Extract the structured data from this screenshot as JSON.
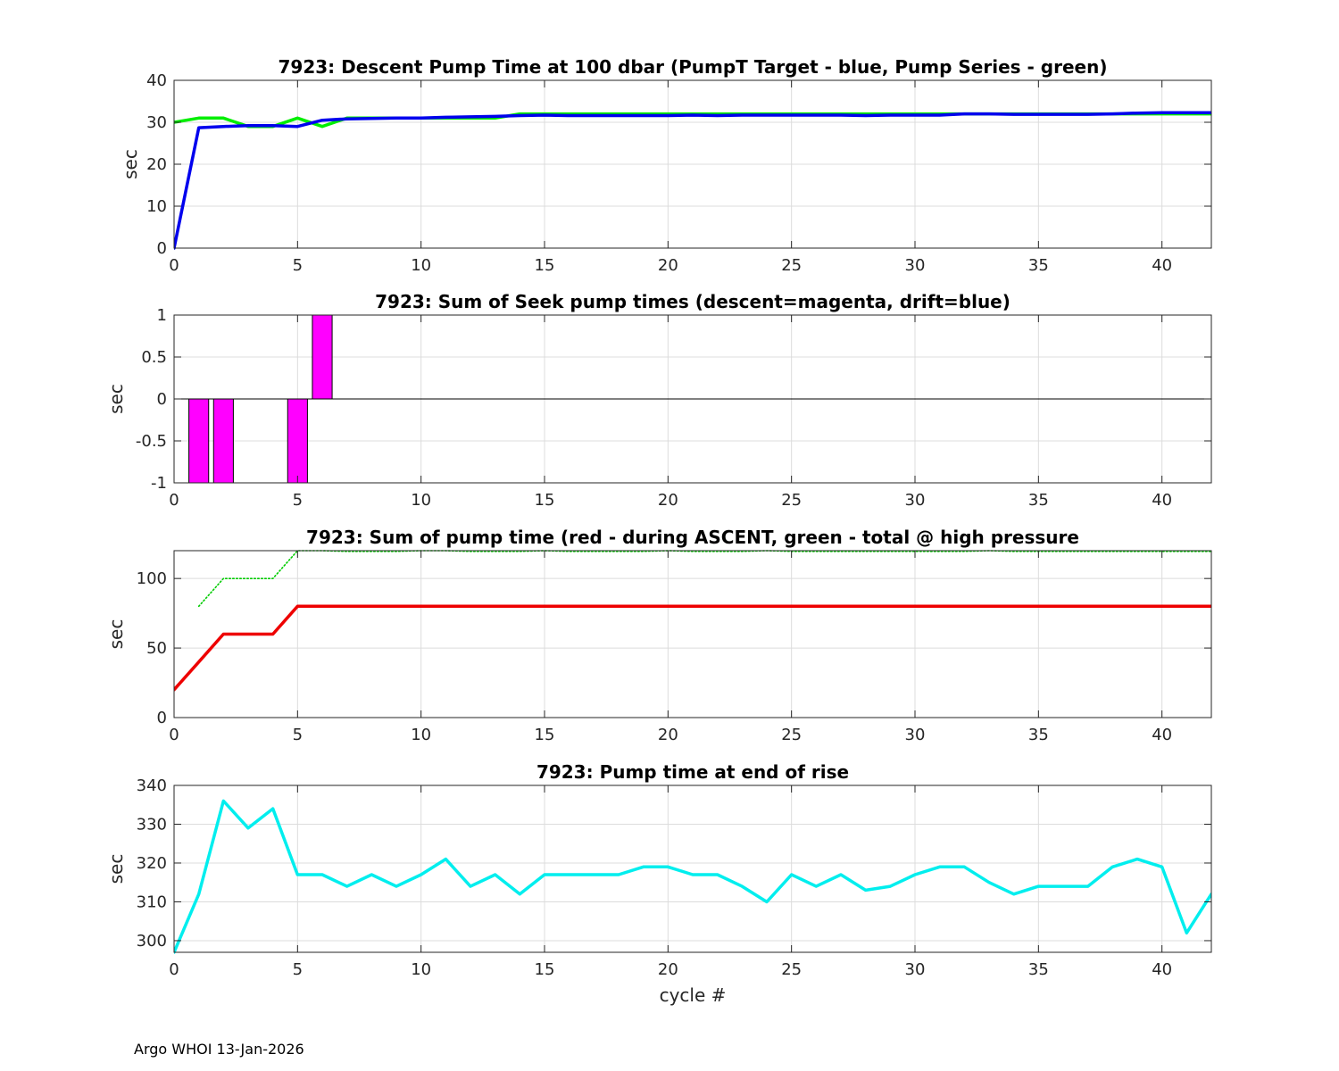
{
  "footer": "Argo WHOI 13-Jan-2026",
  "chart_data": [
    {
      "type": "line",
      "title": "7923: Descent Pump Time at 100 dbar (PumpT Target - blue, Pump Series - green)",
      "xlabel": "",
      "ylabel": "sec",
      "xlim": [
        0,
        42
      ],
      "ylim": [
        0,
        40
      ],
      "xticks": [
        0,
        5,
        10,
        15,
        20,
        25,
        30,
        35,
        40
      ],
      "yticks": [
        0,
        10,
        20,
        30,
        40
      ],
      "grid": true,
      "series": [
        {
          "color": "#00ee00",
          "style": "solid",
          "x": [
            0,
            1,
            2,
            3,
            4,
            5,
            6,
            7,
            8,
            9,
            10,
            11,
            12,
            13,
            14,
            15,
            16,
            17,
            18,
            19,
            20,
            21,
            22,
            23,
            24,
            25,
            26,
            27,
            28,
            29,
            30,
            31,
            32,
            33,
            34,
            35,
            36,
            37,
            38,
            39,
            40,
            41,
            42
          ],
          "y": [
            30,
            31,
            31,
            29,
            29,
            31,
            29,
            31,
            31,
            31,
            31,
            31,
            31,
            31,
            32,
            32,
            32,
            32,
            32,
            32,
            32,
            32,
            32,
            32,
            32,
            32,
            32,
            32,
            32,
            32,
            32,
            32,
            32,
            32,
            32,
            32,
            32,
            32,
            32,
            32,
            32,
            32,
            32
          ]
        },
        {
          "color": "#0000ee",
          "style": "solid",
          "x": [
            0,
            1,
            2,
            3,
            4,
            5,
            6,
            7,
            8,
            9,
            10,
            11,
            12,
            13,
            14,
            15,
            16,
            17,
            18,
            19,
            20,
            21,
            22,
            23,
            24,
            25,
            26,
            27,
            28,
            29,
            30,
            31,
            32,
            33,
            34,
            35,
            36,
            37,
            38,
            39,
            40,
            41,
            42
          ],
          "y": [
            0,
            28.7,
            29,
            29.2,
            29.2,
            29,
            30.5,
            30.8,
            30.9,
            31,
            31,
            31.2,
            31.3,
            31.4,
            31.6,
            31.7,
            31.6,
            31.6,
            31.6,
            31.6,
            31.6,
            31.7,
            31.6,
            31.7,
            31.7,
            31.7,
            31.7,
            31.7,
            31.6,
            31.7,
            31.7,
            31.7,
            32,
            32,
            31.9,
            31.9,
            31.9,
            31.9,
            32,
            32.2,
            32.3,
            32.3,
            32.3
          ]
        }
      ]
    },
    {
      "type": "bar",
      "title": "7923: Sum of Seek pump times (descent=magenta, drift=blue)",
      "xlabel": "",
      "ylabel": "sec",
      "xlim": [
        0,
        42
      ],
      "ylim": [
        -1,
        1
      ],
      "xticks": [
        0,
        5,
        10,
        15,
        20,
        25,
        30,
        35,
        40
      ],
      "yticks": [
        -1,
        -0.5,
        0,
        0.5,
        1
      ],
      "grid": true,
      "bar_width": 0.8,
      "zero_line": true,
      "series": [
        {
          "color": "#ff00ff",
          "x": [
            1,
            2,
            5,
            6
          ],
          "y": [
            -1,
            -1,
            -1,
            1
          ]
        }
      ]
    },
    {
      "type": "line",
      "title": "7923: Sum of pump time (red - during ASCENT, green - total @ high pressure",
      "xlabel": "",
      "ylabel": "sec",
      "xlim": [
        0,
        42
      ],
      "ylim": [
        0,
        120
      ],
      "xticks": [
        0,
        5,
        10,
        15,
        20,
        25,
        30,
        35,
        40
      ],
      "yticks": [
        0,
        50,
        100
      ],
      "grid": true,
      "series": [
        {
          "color": "#00cc00",
          "style": "dotted",
          "x": [
            1,
            2,
            3,
            4,
            5,
            6,
            7,
            8,
            9,
            10,
            11,
            12,
            13,
            14,
            15,
            16,
            17,
            18,
            19,
            20,
            21,
            22,
            23,
            24,
            25,
            26,
            27,
            28,
            29,
            30,
            31,
            32,
            33,
            34,
            35,
            36,
            37,
            38,
            39,
            40,
            41,
            42
          ],
          "y": [
            80,
            100,
            100,
            100,
            120,
            120,
            119.5,
            119.5,
            119.5,
            120,
            120,
            119.5,
            119.5,
            119.5,
            120,
            119.5,
            119.5,
            119.5,
            119.5,
            120,
            119.5,
            119.5,
            119.5,
            120,
            119.5,
            119.5,
            119.5,
            119.5,
            119.5,
            119.5,
            119.5,
            119.5,
            120,
            119.5,
            119.5,
            119.5,
            119.5,
            119.5,
            119.5,
            119.5,
            119.5,
            119.5
          ]
        },
        {
          "color": "#ee0000",
          "style": "solid",
          "x": [
            0,
            1,
            2,
            3,
            4,
            5,
            6,
            7,
            8,
            9,
            10,
            11,
            12,
            13,
            14,
            15,
            16,
            17,
            18,
            19,
            20,
            21,
            22,
            23,
            24,
            25,
            26,
            27,
            28,
            29,
            30,
            31,
            32,
            33,
            34,
            35,
            36,
            37,
            38,
            39,
            40,
            41,
            42
          ],
          "y": [
            20,
            40,
            60,
            60,
            60,
            80,
            80,
            80,
            80,
            80,
            80,
            80,
            80,
            80,
            80,
            80,
            80,
            80,
            80,
            80,
            80,
            80,
            80,
            80,
            80,
            80,
            80,
            80,
            80,
            80,
            80,
            80,
            80,
            80,
            80,
            80,
            80,
            80,
            80,
            80,
            80,
            80,
            80
          ]
        }
      ]
    },
    {
      "type": "line",
      "title": "7923: Pump time at end of rise",
      "xlabel": "cycle #",
      "ylabel": "sec",
      "xlim": [
        0,
        42
      ],
      "ylim": [
        297,
        340
      ],
      "xticks": [
        0,
        5,
        10,
        15,
        20,
        25,
        30,
        35,
        40
      ],
      "yticks": [
        300,
        310,
        320,
        330,
        340
      ],
      "grid": true,
      "series": [
        {
          "color": "#00eeee",
          "style": "solid",
          "x": [
            0,
            1,
            2,
            3,
            4,
            5,
            6,
            7,
            8,
            9,
            10,
            11,
            12,
            13,
            14,
            15,
            16,
            17,
            18,
            19,
            20,
            21,
            22,
            23,
            24,
            25,
            26,
            27,
            28,
            29,
            30,
            31,
            32,
            33,
            34,
            35,
            36,
            37,
            38,
            39,
            40,
            41,
            42
          ],
          "y": [
            297,
            312,
            336,
            329,
            334,
            317,
            317,
            314,
            317,
            314,
            317,
            321,
            314,
            317,
            312,
            317,
            317,
            317,
            317,
            319,
            319,
            317,
            317,
            314,
            310,
            317,
            314,
            317,
            313,
            314,
            317,
            319,
            319,
            315,
            312,
            314,
            314,
            314,
            319,
            321,
            319,
            302,
            312
          ]
        }
      ]
    }
  ]
}
